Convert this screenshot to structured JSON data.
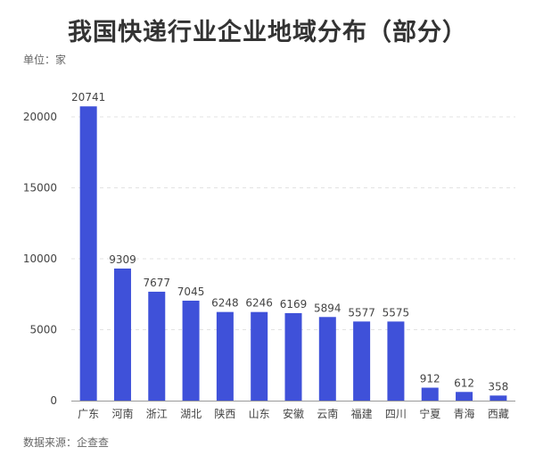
{
  "title": "我国快递行业企业地域分布（部分）",
  "unit_label": "单位：家",
  "source_label": "数据来源：企查查",
  "colors": {
    "bar": "#3f51d9",
    "grid": "#e3e3e3",
    "axis": "#999999"
  },
  "chart_data": {
    "type": "bar",
    "title": "我国快递行业企业地域分布（部分）",
    "categories": [
      "广东",
      "河南",
      "浙江",
      "湖北",
      "陕西",
      "山东",
      "安徽",
      "云南",
      "福建",
      "四川",
      "宁夏",
      "青海",
      "西藏"
    ],
    "values": [
      20741,
      9309,
      7677,
      7045,
      6248,
      6246,
      6169,
      5894,
      5577,
      5575,
      912,
      612,
      358
    ],
    "ylim": [
      0,
      20000
    ],
    "yticks": [
      0,
      5000,
      10000,
      15000,
      20000
    ],
    "xlabel": "",
    "ylabel": "",
    "grid": true
  }
}
